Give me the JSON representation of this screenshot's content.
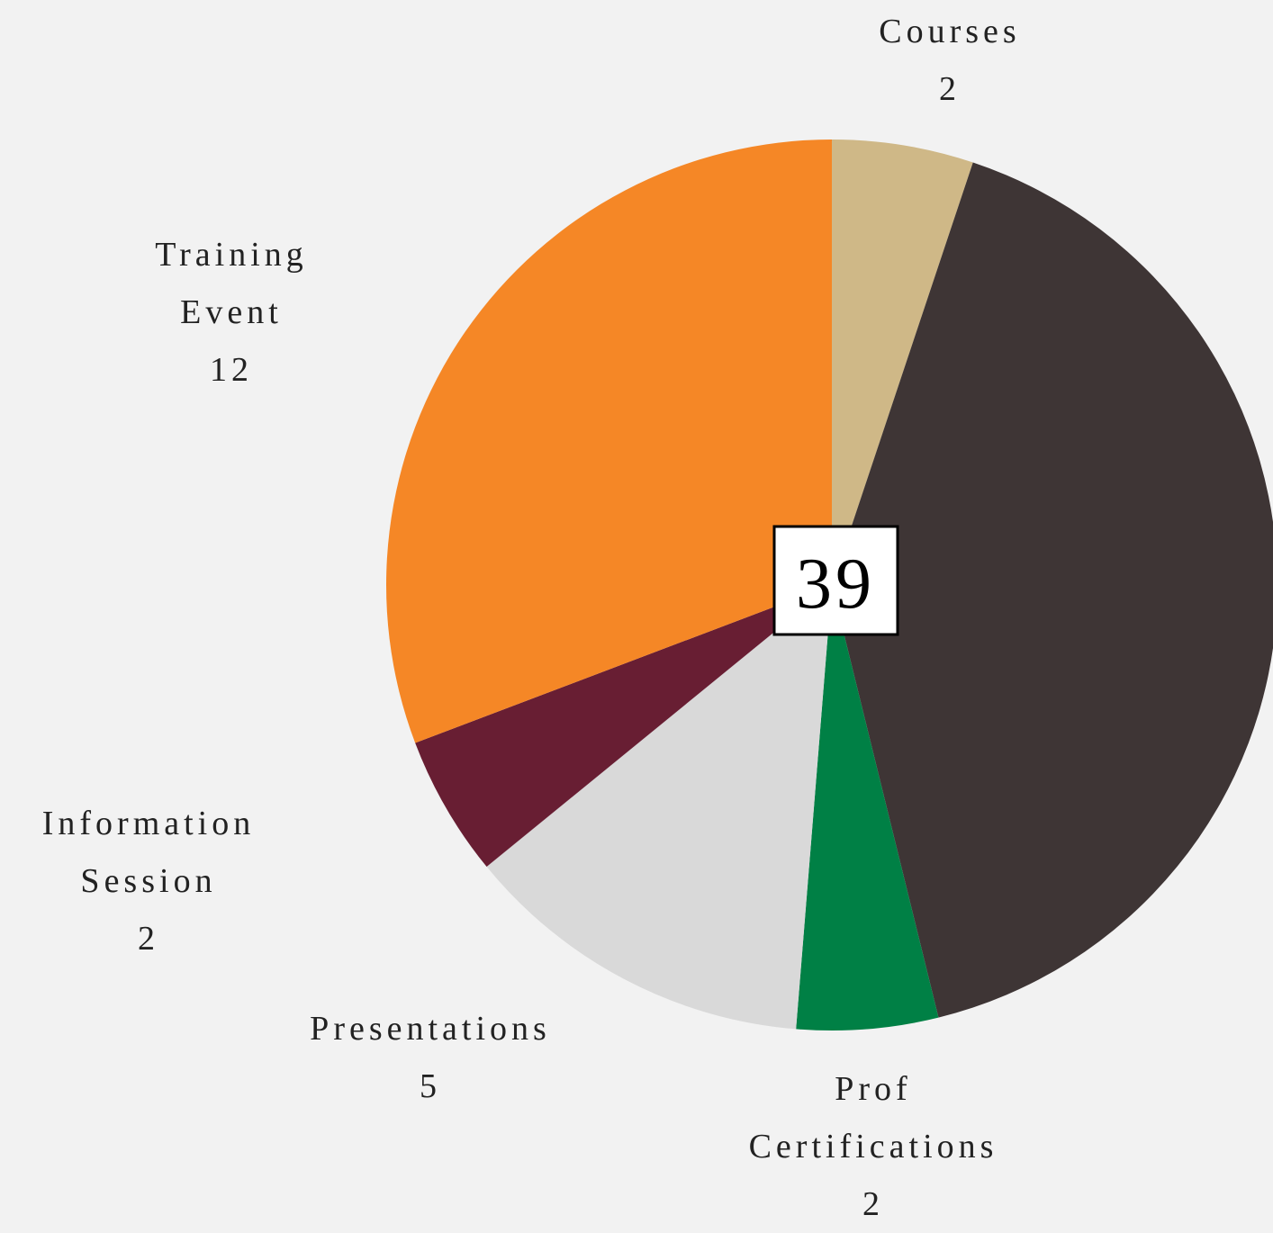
{
  "chart_data": {
    "type": "pie",
    "categories": [
      "Courses",
      null,
      "Prof Certifications",
      "Presentations",
      "Information Session",
      "Training Event"
    ],
    "values": [
      2,
      16,
      2,
      5,
      2,
      12
    ],
    "colors": [
      "#cfb887",
      "#3e3535",
      "#008045",
      "#d9d9d9",
      "#681e33",
      "#f58726"
    ],
    "total": 39
  }
}
